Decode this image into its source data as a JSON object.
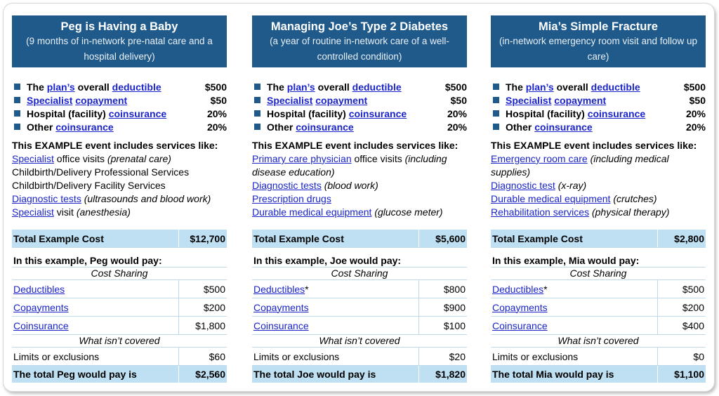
{
  "columns": [
    {
      "title": "Peg is Having a Baby",
      "subtitle": "(9 months of in-network pre-natal care and a hospital delivery)",
      "params": [
        {
          "pre": "The ",
          "link1": "plan’s",
          "mid": " overall ",
          "link2": "deductible",
          "value": "$500"
        },
        {
          "pre": "",
          "link1": "Specialist",
          "mid": " ",
          "link2": "copayment",
          "value": "$50"
        },
        {
          "pre": "Hospital (facility) ",
          "link1": "",
          "mid": "",
          "link2": "coinsurance",
          "value": "20%"
        },
        {
          "pre": "Other ",
          "link1": "",
          "mid": "",
          "link2": "coinsurance",
          "value": "20%"
        }
      ],
      "services_heading": "This EXAMPLE event includes services like:",
      "services": [
        {
          "link": "Specialist",
          "text": " office visits ",
          "note": "(prenatal care)"
        },
        {
          "link": "",
          "text": "Childbirth/Delivery Professional Services",
          "note": ""
        },
        {
          "link": "",
          "text": "Childbirth/Delivery Facility Services",
          "note": ""
        },
        {
          "link": "Diagnostic tests",
          "text": " ",
          "note": "(ultrasounds and blood work)"
        },
        {
          "link": "Specialist",
          "text": " visit ",
          "note": "(anesthesia)"
        }
      ],
      "total_label": "Total Example Cost",
      "total_value": "$12,700",
      "pay_heading": "In this example, Peg would pay:",
      "cost_sharing_label": "Cost Sharing",
      "cost_rows": [
        {
          "label": "Deductibles",
          "suffix": "",
          "value": "$500"
        },
        {
          "label": "Copayments",
          "suffix": "",
          "value": "$200"
        },
        {
          "label": "Coinsurance",
          "suffix": "",
          "value": "$1,800"
        }
      ],
      "not_covered_label": "What isn’t covered",
      "limits_label": "Limits or exclusions",
      "limits_value": "$60",
      "final_label": "The total Peg would pay is",
      "final_value": "$2,560"
    },
    {
      "title": "Managing Joe’s Type 2 Diabetes",
      "subtitle": "(a year of routine in-network care of a well-controlled condition)",
      "params": [
        {
          "pre": "The ",
          "link1": "plan’s",
          "mid": " overall ",
          "link2": "deductible",
          "value": "$500"
        },
        {
          "pre": "",
          "link1": "Specialist",
          "mid": " ",
          "link2": "copayment",
          "value": "$50"
        },
        {
          "pre": "Hospital (facility) ",
          "link1": "",
          "mid": "",
          "link2": "coinsurance",
          "value": "20%"
        },
        {
          "pre": "Other ",
          "link1": "",
          "mid": "",
          "link2": "coinsurance",
          "value": "20%"
        }
      ],
      "services_heading": "This EXAMPLE event includes services like:",
      "services": [
        {
          "link": "Primary care physician",
          "text": " office visits ",
          "note": "(including"
        },
        {
          "link": "",
          "text": "",
          "note": "disease education)"
        },
        {
          "link": "Diagnostic tests",
          "text": " ",
          "note": "(blood work)"
        },
        {
          "link": "Prescription drugs",
          "text": "",
          "note": ""
        },
        {
          "link": "Durable medical equipment",
          "text": " ",
          "note": "(glucose meter)"
        }
      ],
      "total_label": "Total Example Cost",
      "total_value": "$5,600",
      "pay_heading": "In this example, Joe would pay:",
      "cost_sharing_label": "Cost Sharing",
      "cost_rows": [
        {
          "label": "Deductibles",
          "suffix": "*",
          "value": "$800"
        },
        {
          "label": "Copayments",
          "suffix": "",
          "value": "$900"
        },
        {
          "label": "Coinsurance",
          "suffix": "",
          "value": "$100"
        }
      ],
      "not_covered_label": "What isn’t covered",
      "limits_label": "Limits or exclusions",
      "limits_value": "$20",
      "final_label": "The total Joe would pay is",
      "final_value": "$1,820"
    },
    {
      "title": "Mia’s Simple Fracture",
      "subtitle": "(in-network emergency room visit and follow up care)",
      "params": [
        {
          "pre": "The ",
          "link1": "plan’s",
          "mid": " overall ",
          "link2": "deductible",
          "value": "$500"
        },
        {
          "pre": "",
          "link1": "Specialist",
          "mid": " ",
          "link2": "copayment",
          "value": "$50"
        },
        {
          "pre": "Hospital (facility) ",
          "link1": "",
          "mid": "",
          "link2": "coinsurance",
          "value": "20%"
        },
        {
          "pre": "Other ",
          "link1": "",
          "mid": "",
          "link2": "coinsurance",
          "value": "20%"
        }
      ],
      "services_heading": "This EXAMPLE event includes services like:",
      "services": [
        {
          "link": "Emergency room care",
          "text": " ",
          "note": "(including medical"
        },
        {
          "link": "",
          "text": "",
          "note": "supplies)"
        },
        {
          "link": "Diagnostic test",
          "text": " ",
          "note": "(x-ray)"
        },
        {
          "link": "Durable medical equipment",
          "text": " ",
          "note": "(crutches)"
        },
        {
          "link": "Rehabilitation services",
          "text": " ",
          "note": "(physical therapy)"
        }
      ],
      "total_label": "Total Example Cost",
      "total_value": "$2,800",
      "pay_heading": "In this example, Mia would pay:",
      "cost_sharing_label": "Cost Sharing",
      "cost_rows": [
        {
          "label": "Deductibles",
          "suffix": "*",
          "value": "$500"
        },
        {
          "label": "Copayments",
          "suffix": "",
          "value": "$200"
        },
        {
          "label": "Coinsurance",
          "suffix": "",
          "value": "$400"
        }
      ],
      "not_covered_label": "What isn’t covered",
      "limits_label": "Limits or exclusions",
      "limits_value": "$0",
      "final_label": "The total Mia would pay is",
      "final_value": "$1,100"
    }
  ],
  "colors": {
    "header_bg": "#1f5a8a",
    "total_bg": "#bfe0f2",
    "link": "#1a24c8",
    "grid": "#bfd9ea"
  }
}
